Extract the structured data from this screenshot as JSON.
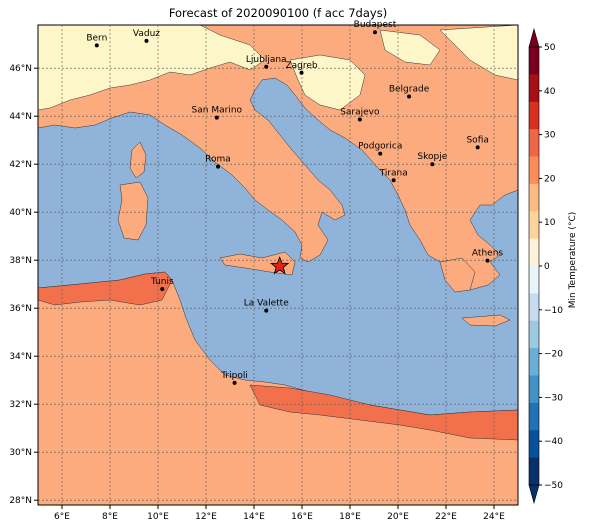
{
  "title": "Forecast of 2020090100 (f acc 7days)",
  "map": {
    "lon_range": [
      5,
      25
    ],
    "lat_range": [
      27.8,
      47.8
    ],
    "lon_ticks": [
      "6°E",
      "8°E",
      "10°E",
      "12°E",
      "14°E",
      "16°E",
      "18°E",
      "20°E",
      "22°E",
      "24°E"
    ],
    "lat_ticks": [
      "28°N",
      "30°N",
      "32°N",
      "34°N",
      "36°N",
      "38°N",
      "40°N",
      "42°N",
      "44°N",
      "46°N"
    ],
    "grid": true,
    "sea_color": "#8fb3d9",
    "land_colors": {
      "0_10": "#fdf6c9",
      "10_20": "#fcab7e",
      "20_30": "#f2714c"
    },
    "cities": [
      {
        "name": "Bern",
        "lon": 7.45,
        "lat": 46.95
      },
      {
        "name": "Vaduz",
        "lon": 9.52,
        "lat": 47.14
      },
      {
        "name": "Budapest",
        "lon": 19.04,
        "lat": 47.5
      },
      {
        "name": "Ljubljana",
        "lon": 14.51,
        "lat": 46.06
      },
      {
        "name": "Zagreb",
        "lon": 15.98,
        "lat": 45.81
      },
      {
        "name": "Belgrade",
        "lon": 20.46,
        "lat": 44.82
      },
      {
        "name": "San Marino",
        "lon": 12.45,
        "lat": 43.94
      },
      {
        "name": "Sarajevo",
        "lon": 18.41,
        "lat": 43.86
      },
      {
        "name": "Sofia",
        "lon": 23.32,
        "lat": 42.7
      },
      {
        "name": "Podgorica",
        "lon": 19.26,
        "lat": 42.44
      },
      {
        "name": "Skopje",
        "lon": 21.43,
        "lat": 42.0
      },
      {
        "name": "Roma",
        "lon": 12.5,
        "lat": 41.9
      },
      {
        "name": "Tirana",
        "lon": 19.82,
        "lat": 41.33
      },
      {
        "name": "Athens",
        "lon": 23.73,
        "lat": 37.98
      },
      {
        "name": "Tunis",
        "lon": 10.18,
        "lat": 36.8
      },
      {
        "name": "La Valette",
        "lon": 14.51,
        "lat": 35.9
      },
      {
        "name": "Tripoli",
        "lon": 13.19,
        "lat": 32.89
      }
    ],
    "marker": {
      "symbol": "star",
      "lon": 15.07,
      "lat": 37.75,
      "color": "#e0221b"
    }
  },
  "colorbar": {
    "label": "Min Temperature (°C)",
    "ticks": [
      "50",
      "40",
      "30",
      "20",
      "10",
      "0",
      "−10",
      "−20",
      "−30",
      "−40",
      "−50"
    ],
    "colors": [
      "#7a0020",
      "#a50f15",
      "#d7301f",
      "#ef6548",
      "#fc8d59",
      "#fdbb84",
      "#fdd49e",
      "#fef0d9",
      "#e8f4f8",
      "#c6dbef",
      "#9ecae1",
      "#6baed6",
      "#4292c6",
      "#2171b5",
      "#08519c",
      "#08306b"
    ]
  }
}
